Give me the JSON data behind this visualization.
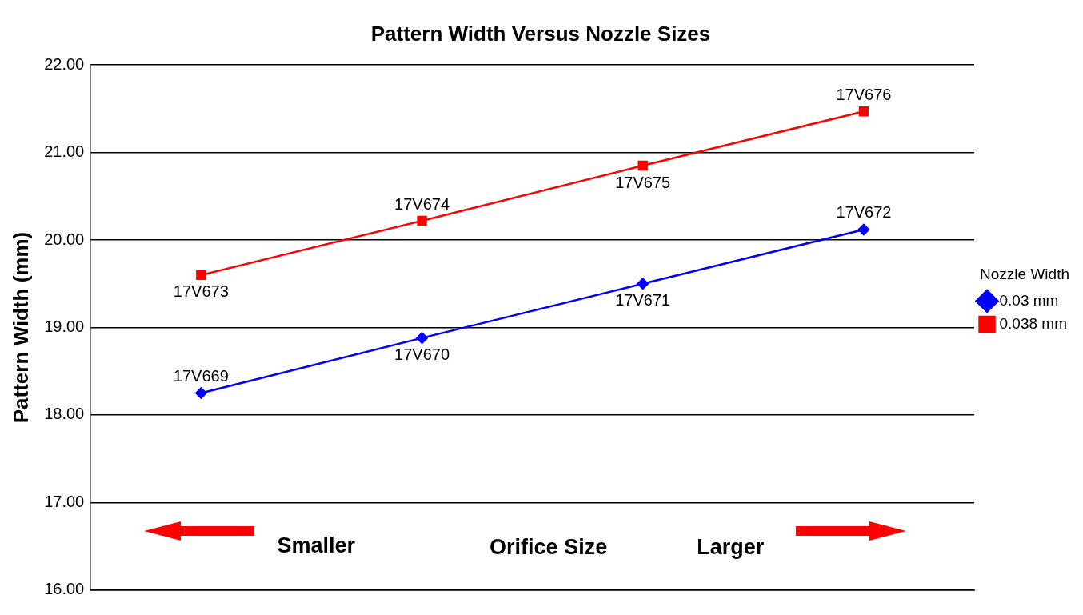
{
  "chart_data": {
    "type": "line",
    "title": "Pattern Width Versus Nozzle Sizes",
    "ylabel": "Pattern Width (mm)",
    "xlabel": "Orifice Size",
    "legend_title": "Nozzle Width",
    "categories": [
      null,
      null,
      null,
      null
    ],
    "series": [
      {
        "name": "0.03 mm",
        "color": "#0000ff",
        "marker": "diamond",
        "values": [
          18.25,
          18.88,
          19.5,
          20.12
        ]
      },
      {
        "name": "0.038 mm",
        "color": "#ff0000",
        "marker": "square",
        "values": [
          19.6,
          20.22,
          20.85,
          21.47
        ]
      }
    ],
    "ylim": [
      16,
      22
    ],
    "yticks": [
      {
        "value": 16,
        "label": "16.00"
      },
      {
        "value": 17,
        "label": "17.00"
      },
      {
        "value": 18,
        "label": "18.00"
      },
      {
        "value": 19,
        "label": "19.00"
      },
      {
        "value": 20,
        "label": "20.00"
      },
      {
        "value": 21,
        "label": "21.00"
      },
      {
        "value": 22,
        "label": "22.00"
      }
    ],
    "annotations": [
      "Smaller",
      "Larger",
      {
        "text": "17V669",
        "y": 18.25
      },
      {
        "text": "17V670",
        "y": 18.88
      },
      {
        "text": "17V671",
        "y": 19.5
      },
      {
        "text": "17V672",
        "y": 20.12
      },
      {
        "text": "17V673",
        "y": 19.6
      },
      {
        "text": "17V674",
        "y": 20.22
      },
      {
        "text": "17V675",
        "y": 20.85
      },
      {
        "text": "17V676",
        "y": 21.47
      }
    ],
    "grid": "y",
    "legend": "right",
    "line_style": "solid"
  }
}
